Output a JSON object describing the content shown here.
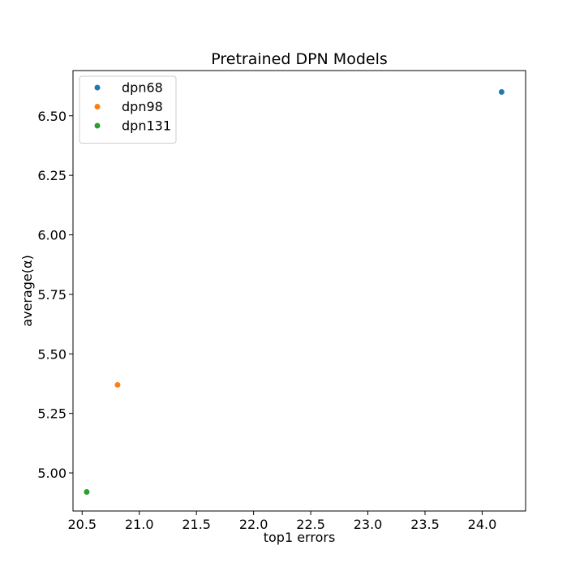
{
  "chart_data": {
    "type": "scatter",
    "title": "Pretrained DPN Models",
    "xlabel": "top1 errors",
    "ylabel": "average(α)",
    "xlim": [
      20.42,
      24.38
    ],
    "ylim": [
      4.84,
      6.69
    ],
    "xticks": [
      20.5,
      21.0,
      21.5,
      22.0,
      22.5,
      23.0,
      23.5,
      24.0
    ],
    "xtick_labels": [
      "20.5",
      "21.0",
      "21.5",
      "22.0",
      "22.5",
      "23.0",
      "23.5",
      "24.0"
    ],
    "yticks": [
      5.0,
      5.25,
      5.5,
      5.75,
      6.0,
      6.25,
      6.5
    ],
    "ytick_labels": [
      "5.00",
      "5.25",
      "5.50",
      "5.75",
      "6.00",
      "6.25",
      "6.50"
    ],
    "grid": false,
    "legend_position": "top-left",
    "series": [
      {
        "name": "dpn68",
        "color": "#1f77b4",
        "points": [
          [
            24.17,
            6.6
          ]
        ]
      },
      {
        "name": "dpn98",
        "color": "#ff7f0e",
        "points": [
          [
            20.81,
            5.37
          ]
        ]
      },
      {
        "name": "dpn131",
        "color": "#2ca02c",
        "points": [
          [
            20.54,
            4.92
          ]
        ]
      }
    ]
  }
}
